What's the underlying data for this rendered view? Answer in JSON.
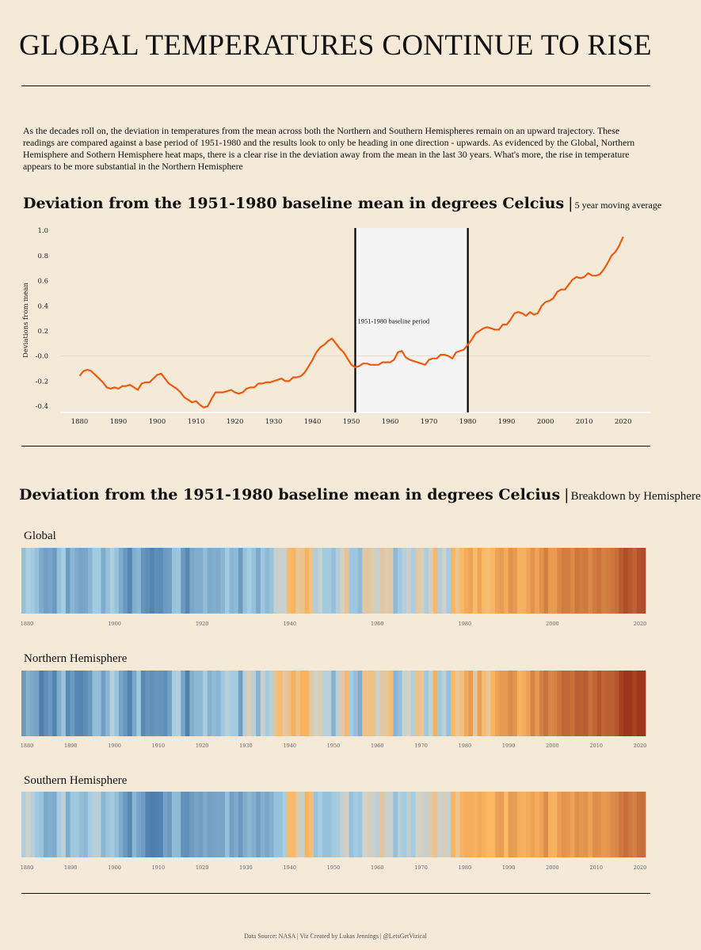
{
  "page": {
    "title": "GLOBAL TEMPERATURES CONTINUE TO RISE",
    "intro": "As the decades roll on, the deviation in temperatures from the mean across both the Northern and Southern Hemispheres remain on an upward trajectory. These readings are compared against a base period of 1951-1980 and the results look to only be heading in one direction - upwards. As evidenced by the Global, Northern Hemisphere and Sothern Hemisphere heat maps, there is a clear rise in the deviation away from the mean in the last 30 years. What's more, the rise in temperature appears to be more substantial in the Northern Hemisphere",
    "footer": "Data Source: NASA | Viz Created by Lukas Jennings | @LetsGetVizical"
  },
  "section1": {
    "title": "Deviation from the 1951-1980 baseline mean in degrees Celcius",
    "separator": "|",
    "subtitle": "5 year moving average"
  },
  "section2": {
    "title": "Deviation from the 1951-1980 baseline mean in degrees Celcius",
    "separator": "|",
    "subtitle": "Breakdown by Hemisphere"
  },
  "colors": {
    "background": "#f5e9d8",
    "line": "#f05a0f",
    "baseline_band": "#f4f4f4",
    "cold_dark": "#4f7fad",
    "cold_light": "#a4cde3",
    "neutral": "#d3d1c8",
    "warm_light": "#fdb963",
    "warm_dark": "#9e361b"
  },
  "chart_data": [
    {
      "type": "line",
      "title": "Deviation from the 1951-1980 baseline mean in degrees Celcius",
      "subtitle": "5 year moving average",
      "xlabel": "",
      "ylabel": "Deviations from mean",
      "xlim": [
        1875,
        2027
      ],
      "ylim": [
        -0.45,
        1.02
      ],
      "xticks": [
        "1880",
        "1890",
        "1900",
        "1910",
        "1920",
        "1930",
        "1940",
        "1950",
        "1960",
        "1970",
        "1980",
        "1990",
        "2000",
        "2010",
        "2020"
      ],
      "yticks": [
        "1.0",
        "0.8",
        "0.6",
        "0.4",
        "0.2",
        "-0.0",
        "-0.2",
        "-0.4"
      ],
      "annotation": "1951-1980 baseline period",
      "baseline_period": [
        1951,
        1980
      ],
      "series": [
        {
          "x": [
            1880,
            1881,
            1882,
            1883,
            1884,
            1885,
            1886,
            1887,
            1888,
            1889,
            1890,
            1891,
            1892,
            1893,
            1894,
            1895,
            1896,
            1897,
            1898,
            1899,
            1900,
            1901,
            1902,
            1903,
            1904,
            1905,
            1906,
            1907,
            1908,
            1909,
            1910,
            1911,
            1912,
            1913,
            1914,
            1915,
            1916,
            1917,
            1918,
            1919,
            1920,
            1921,
            1922,
            1923,
            1924,
            1925,
            1926,
            1927,
            1928,
            1929,
            1930,
            1931,
            1932,
            1933,
            1934,
            1935,
            1936,
            1937,
            1938,
            1939,
            1940,
            1941,
            1942,
            1943,
            1944,
            1945,
            1946,
            1947,
            1948,
            1949,
            1950,
            1951,
            1952,
            1953,
            1954,
            1955,
            1956,
            1957,
            1958,
            1959,
            1960,
            1961,
            1962,
            1963,
            1964,
            1965,
            1966,
            1967,
            1968,
            1969,
            1970,
            1971,
            1972,
            1973,
            1974,
            1975,
            1976,
            1977,
            1978,
            1979,
            1980,
            1981,
            1982,
            1983,
            1984,
            1985,
            1986,
            1987,
            1988,
            1989,
            1990,
            1991,
            1992,
            1993,
            1994,
            1995,
            1996,
            1997,
            1998,
            1999,
            2000,
            2001,
            2002,
            2003,
            2004,
            2005,
            2006,
            2007,
            2008,
            2009,
            2010,
            2011,
            2012,
            2013,
            2014,
            2015,
            2016,
            2017,
            2018,
            2019,
            2020
          ],
          "values": [
            -0.16,
            -0.12,
            -0.11,
            -0.12,
            -0.15,
            -0.18,
            -0.21,
            -0.25,
            -0.26,
            -0.25,
            -0.26,
            -0.24,
            -0.24,
            -0.23,
            -0.25,
            -0.27,
            -0.22,
            -0.21,
            -0.21,
            -0.18,
            -0.15,
            -0.14,
            -0.18,
            -0.22,
            -0.24,
            -0.26,
            -0.29,
            -0.33,
            -0.35,
            -0.37,
            -0.36,
            -0.39,
            -0.41,
            -0.4,
            -0.34,
            -0.29,
            -0.29,
            -0.29,
            -0.28,
            -0.27,
            -0.29,
            -0.3,
            -0.29,
            -0.26,
            -0.25,
            -0.25,
            -0.22,
            -0.22,
            -0.21,
            -0.21,
            -0.2,
            -0.19,
            -0.18,
            -0.2,
            -0.2,
            -0.17,
            -0.17,
            -0.16,
            -0.13,
            -0.08,
            -0.03,
            0.03,
            0.07,
            0.09,
            0.12,
            0.14,
            0.1,
            0.06,
            0.03,
            -0.02,
            -0.07,
            -0.09,
            -0.08,
            -0.06,
            -0.06,
            -0.07,
            -0.07,
            -0.07,
            -0.05,
            -0.05,
            -0.05,
            -0.03,
            0.03,
            0.04,
            -0.01,
            -0.03,
            -0.04,
            -0.05,
            -0.06,
            -0.07,
            -0.03,
            -0.02,
            -0.02,
            0.01,
            0.01,
            0.0,
            -0.02,
            0.03,
            0.04,
            0.05,
            0.09,
            0.13,
            0.18,
            0.2,
            0.22,
            0.23,
            0.22,
            0.21,
            0.21,
            0.25,
            0.25,
            0.29,
            0.34,
            0.35,
            0.34,
            0.32,
            0.35,
            0.33,
            0.34,
            0.4,
            0.43,
            0.44,
            0.46,
            0.51,
            0.53,
            0.53,
            0.57,
            0.61,
            0.63,
            0.62,
            0.63,
            0.66,
            0.64,
            0.64,
            0.65,
            0.69,
            0.74,
            0.8,
            0.83,
            0.88,
            0.95
          ]
        }
      ]
    },
    {
      "type": "heatmap",
      "title": "Global",
      "x_start": 1880,
      "x_end": 2020,
      "xticks": [
        "1880",
        "1900",
        "1920",
        "1940",
        "1960",
        "1980",
        "2000",
        "2020"
      ],
      "values": [
        -0.16,
        -0.08,
        -0.11,
        -0.17,
        -0.28,
        -0.33,
        -0.31,
        -0.36,
        -0.17,
        -0.1,
        -0.35,
        -0.22,
        -0.27,
        -0.31,
        -0.3,
        -0.22,
        -0.11,
        -0.11,
        -0.27,
        -0.17,
        -0.08,
        -0.15,
        -0.28,
        -0.37,
        -0.47,
        -0.26,
        -0.22,
        -0.39,
        -0.43,
        -0.48,
        -0.43,
        -0.44,
        -0.36,
        -0.34,
        -0.15,
        -0.14,
        -0.36,
        -0.46,
        -0.3,
        -0.27,
        -0.27,
        -0.19,
        -0.28,
        -0.26,
        -0.27,
        -0.22,
        -0.11,
        -0.22,
        -0.2,
        -0.36,
        -0.16,
        -0.1,
        -0.16,
        -0.29,
        -0.13,
        -0.2,
        -0.15,
        -0.03,
        -0.01,
        -0.02,
        0.13,
        0.19,
        0.07,
        0.09,
        0.2,
        0.09,
        -0.07,
        -0.03,
        -0.11,
        -0.11,
        -0.17,
        -0.07,
        0.01,
        0.08,
        -0.13,
        -0.14,
        -0.19,
        0.05,
        0.06,
        0.03,
        -0.03,
        0.06,
        0.03,
        0.05,
        -0.2,
        -0.11,
        -0.06,
        -0.02,
        -0.08,
        0.05,
        0.03,
        -0.08,
        0.01,
        0.16,
        -0.07,
        -0.01,
        -0.1,
        0.18,
        0.07,
        0.16,
        0.26,
        0.32,
        0.14,
        0.31,
        0.16,
        0.12,
        0.18,
        0.32,
        0.39,
        0.27,
        0.45,
        0.4,
        0.22,
        0.23,
        0.31,
        0.45,
        0.33,
        0.46,
        0.61,
        0.38,
        0.39,
        0.54,
        0.63,
        0.62,
        0.53,
        0.68,
        0.64,
        0.66,
        0.54,
        0.65,
        0.72,
        0.61,
        0.64,
        0.68,
        0.75,
        0.9,
        1.01,
        0.92,
        0.85,
        0.98,
        1.02
      ]
    },
    {
      "type": "heatmap",
      "title": "Northern Hemisphere",
      "x_start": 1880,
      "x_end": 2020,
      "xticks": [
        "1880",
        "1890",
        "1900",
        "1910",
        "1920",
        "1930",
        "1940",
        "1950",
        "1960",
        "1970",
        "1980",
        "1990",
        "2000",
        "2010",
        "2020"
      ],
      "values": [
        -0.36,
        -0.24,
        -0.29,
        -0.32,
        -0.53,
        -0.43,
        -0.37,
        -0.48,
        -0.27,
        -0.15,
        -0.45,
        -0.36,
        -0.46,
        -0.47,
        -0.43,
        -0.37,
        -0.18,
        -0.18,
        -0.33,
        -0.22,
        -0.06,
        -0.14,
        -0.31,
        -0.38,
        -0.49,
        -0.3,
        -0.13,
        -0.45,
        -0.38,
        -0.41,
        -0.38,
        -0.4,
        -0.42,
        -0.32,
        -0.1,
        -0.07,
        -0.3,
        -0.5,
        -0.25,
        -0.21,
        -0.21,
        -0.09,
        -0.24,
        -0.19,
        -0.22,
        -0.12,
        -0.06,
        -0.1,
        -0.11,
        -0.34,
        -0.05,
        0.02,
        -0.06,
        -0.23,
        -0.01,
        -0.1,
        -0.05,
        0.09,
        0.14,
        0.05,
        0.1,
        0.23,
        0.1,
        0.21,
        0.21,
        0.05,
        0.0,
        0.03,
        -0.06,
        -0.06,
        -0.24,
        -0.05,
        0.05,
        0.16,
        -0.1,
        -0.17,
        -0.26,
        0.1,
        0.1,
        0.09,
        -0.02,
        0.06,
        0.07,
        0.12,
        -0.23,
        -0.17,
        -0.02,
        0.0,
        -0.07,
        0.1,
        0.06,
        -0.12,
        -0.03,
        0.22,
        -0.12,
        -0.05,
        -0.17,
        0.17,
        0.07,
        0.11,
        0.27,
        0.39,
        0.06,
        0.34,
        0.12,
        0.07,
        0.19,
        0.32,
        0.4,
        0.4,
        0.5,
        0.44,
        0.2,
        0.25,
        0.35,
        0.58,
        0.41,
        0.6,
        0.71,
        0.55,
        0.59,
        0.71,
        0.81,
        0.82,
        0.73,
        0.88,
        0.86,
        0.88,
        0.74,
        0.81,
        0.97,
        0.82,
        0.86,
        0.87,
        0.95,
        1.13,
        1.27,
        1.19,
        1.1,
        1.23,
        1.29
      ]
    },
    {
      "type": "heatmap",
      "title": "Southern Hemisphere",
      "x_start": 1880,
      "x_end": 2020,
      "xticks": [
        "1880",
        "1890",
        "1900",
        "1910",
        "1920",
        "1930",
        "1940",
        "1950",
        "1960",
        "1970",
        "1980",
        "1990",
        "2000",
        "2010",
        "2020"
      ],
      "values": [
        -0.08,
        0.0,
        -0.05,
        -0.11,
        -0.15,
        -0.28,
        -0.25,
        -0.27,
        -0.1,
        -0.05,
        -0.27,
        -0.14,
        -0.12,
        -0.18,
        -0.21,
        -0.09,
        -0.06,
        -0.06,
        -0.22,
        -0.14,
        -0.11,
        -0.18,
        -0.27,
        -0.37,
        -0.46,
        -0.22,
        -0.31,
        -0.35,
        -0.48,
        -0.56,
        -0.49,
        -0.48,
        -0.32,
        -0.36,
        -0.2,
        -0.2,
        -0.41,
        -0.42,
        -0.35,
        -0.32,
        -0.34,
        -0.28,
        -0.33,
        -0.32,
        -0.31,
        -0.31,
        -0.17,
        -0.33,
        -0.28,
        -0.37,
        -0.27,
        -0.22,
        -0.26,
        -0.34,
        -0.25,
        -0.3,
        -0.25,
        -0.15,
        -0.15,
        -0.09,
        0.15,
        0.14,
        0.04,
        -0.03,
        0.18,
        0.12,
        -0.15,
        -0.09,
        -0.16,
        -0.16,
        -0.11,
        -0.09,
        -0.03,
        0.01,
        -0.16,
        -0.11,
        -0.13,
        0.0,
        0.02,
        -0.02,
        -0.04,
        0.07,
        -0.02,
        -0.02,
        -0.17,
        -0.06,
        -0.1,
        -0.04,
        -0.1,
        0.0,
        0.01,
        -0.03,
        0.05,
        0.09,
        -0.02,
        0.03,
        -0.03,
        0.19,
        0.07,
        0.21,
        0.25,
        0.24,
        0.22,
        0.28,
        0.21,
        0.17,
        0.17,
        0.33,
        0.38,
        0.15,
        0.4,
        0.36,
        0.24,
        0.21,
        0.27,
        0.32,
        0.25,
        0.33,
        0.51,
        0.22,
        0.2,
        0.37,
        0.45,
        0.42,
        0.33,
        0.48,
        0.42,
        0.45,
        0.33,
        0.49,
        0.47,
        0.4,
        0.42,
        0.5,
        0.55,
        0.67,
        0.75,
        0.66,
        0.61,
        0.73,
        0.75
      ]
    }
  ]
}
